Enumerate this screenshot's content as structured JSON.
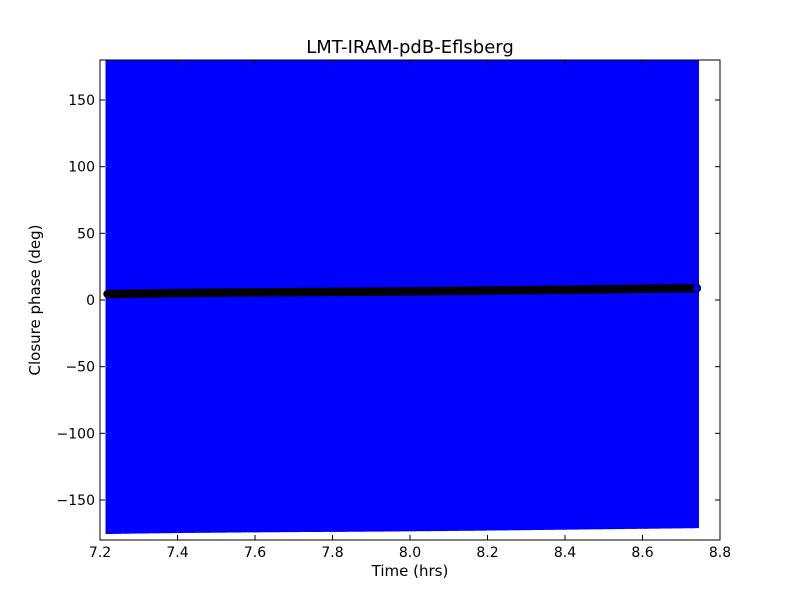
{
  "chart_data": {
    "type": "scatter",
    "title": "LMT-IRAM-pdB-Eflsberg",
    "xlabel": "Time (hrs)",
    "ylabel": "Closure phase (deg)",
    "xlim": [
      7.2,
      8.8
    ],
    "ylim": [
      -180,
      180
    ],
    "xticks": [
      7.2,
      7.4,
      7.6,
      7.8,
      8.0,
      8.2,
      8.4,
      8.6,
      8.8
    ],
    "xtick_labels": [
      "7.2",
      "7.4",
      "7.6",
      "7.8",
      "8.0",
      "8.2",
      "8.4",
      "8.6",
      "8.8"
    ],
    "yticks": [
      150,
      100,
      50,
      0,
      -50,
      -100,
      -150
    ],
    "ytick_labels": [
      "150",
      "100",
      "50",
      "0",
      "−50",
      "−100",
      "−150"
    ],
    "grid": false,
    "colors": {
      "errorbar": "#0000ff",
      "marker_edge": "#000000",
      "marker_fill": "#0000ff"
    },
    "series": [
      {
        "marker": "circle",
        "x_start": 7.22,
        "x_end": 8.74,
        "x_step": 0.01,
        "y": [
          4.5,
          4.5,
          4.6,
          4.6,
          4.7,
          4.7,
          4.8,
          4.8,
          4.9,
          4.9,
          4.9,
          5.0,
          5.0,
          5.0,
          5.1,
          5.1,
          5.1,
          5.2,
          5.2,
          5.2,
          5.3,
          5.3,
          5.3,
          5.4,
          5.4,
          5.4,
          5.4,
          5.5,
          5.5,
          5.5,
          5.5,
          5.6,
          5.6,
          5.6,
          5.6,
          5.7,
          5.7,
          5.7,
          5.7,
          5.7,
          5.8,
          5.8,
          5.8,
          5.8,
          5.8,
          5.9,
          5.9,
          5.9,
          5.9,
          5.9,
          6.0,
          6.0,
          6.0,
          6.0,
          6.0,
          6.0,
          6.1,
          6.1,
          6.1,
          6.1,
          6.1,
          6.1,
          6.2,
          6.2,
          6.2,
          6.2,
          6.2,
          6.3,
          6.3,
          6.3,
          6.3,
          6.3,
          6.4,
          6.4,
          6.4,
          6.4,
          6.5,
          6.5,
          6.5,
          6.5,
          6.6,
          6.6,
          6.6,
          6.6,
          6.7,
          6.7,
          6.7,
          6.7,
          6.8,
          6.8,
          6.8,
          6.9,
          6.9,
          6.9,
          6.9,
          7.0,
          7.0,
          7.0,
          7.1,
          7.1,
          7.1,
          7.2,
          7.2,
          7.2,
          7.3,
          7.3,
          7.3,
          7.4,
          7.4,
          7.4,
          7.5,
          7.5,
          7.5,
          7.6,
          7.6,
          7.6,
          7.7,
          7.7,
          7.7,
          7.8,
          7.8,
          7.8,
          7.9,
          7.9,
          7.9,
          8.0,
          8.0,
          8.0,
          8.1,
          8.1,
          8.1,
          8.2,
          8.2,
          8.2,
          8.3,
          8.3,
          8.3,
          8.4,
          8.4,
          8.4,
          8.5,
          8.5,
          8.5,
          8.6,
          8.6,
          8.6,
          8.7,
          8.7,
          8.7,
          8.8,
          8.8,
          8.8,
          8.9
        ],
        "yerr": 180
      }
    ]
  }
}
